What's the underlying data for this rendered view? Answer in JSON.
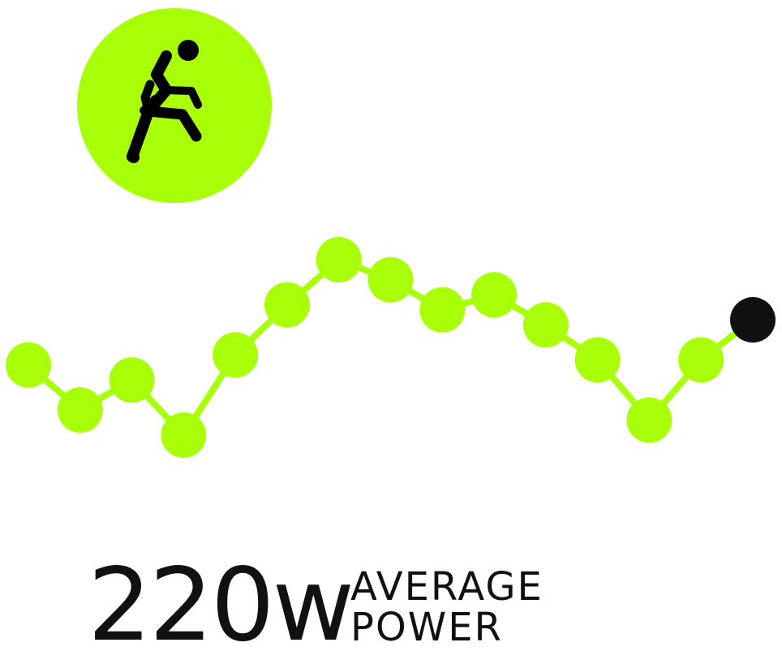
{
  "activity": {
    "icon": "running-person-icon",
    "badge_color": "#A8FF07"
  },
  "trend": {
    "line_color": "#A8FF07",
    "point_color": "#A8FF07",
    "current_point_color": "#111111",
    "values": [
      5.5,
      4.6,
      5.2,
      4.1,
      5.7,
      6.7,
      7.6,
      7.2,
      6.6,
      6.9,
      6.3,
      5.6,
      4.4,
      5.6,
      6.4
    ]
  },
  "metric": {
    "value": "220w",
    "label_line1": "AVERAGE",
    "label_line2": "POWER"
  }
}
